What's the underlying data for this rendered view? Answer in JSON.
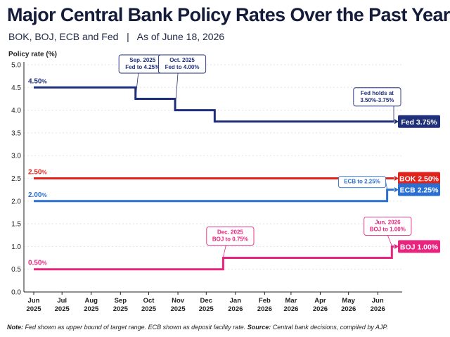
{
  "chart_data": {
    "type": "line",
    "step": true,
    "title": "Major Central Bank Policy Rates Over the Past Year",
    "subtitle": "BOK, BOJ, ECB and Fed",
    "as_of": "As of June 18, 2026",
    "ylabel": "Policy rate (%)",
    "xlabel": "",
    "ylim": [
      0,
      5
    ],
    "yticks": [
      "0.0",
      "0.5",
      "1.0",
      "1.5",
      "2.0",
      "2.5",
      "3.0",
      "3.5",
      "4.0",
      "4.5",
      "5.0"
    ],
    "x_range": [
      "2025-06-01",
      "2026-06-18"
    ],
    "xticks": [
      {
        "month": "Jun",
        "year": "2025",
        "date": "2025-06-01"
      },
      {
        "month": "Jul",
        "year": "2025",
        "date": "2025-07-01"
      },
      {
        "month": "Aug",
        "year": "2025",
        "date": "2025-08-01"
      },
      {
        "month": "Sep",
        "year": "2025",
        "date": "2025-09-01"
      },
      {
        "month": "Oct",
        "year": "2025",
        "date": "2025-10-01"
      },
      {
        "month": "Nov",
        "year": "2025",
        "date": "2025-11-01"
      },
      {
        "month": "Dec",
        "year": "2025",
        "date": "2025-12-01"
      },
      {
        "month": "Jan",
        "year": "2026",
        "date": "2026-01-01"
      },
      {
        "month": "Feb",
        "year": "2026",
        "date": "2026-02-01"
      },
      {
        "month": "Mar",
        "year": "2026",
        "date": "2026-03-01"
      },
      {
        "month": "Apr",
        "year": "2026",
        "date": "2026-04-01"
      },
      {
        "month": "May",
        "year": "2026",
        "date": "2026-05-01"
      },
      {
        "month": "Jun",
        "year": "2026",
        "date": "2026-06-01"
      }
    ],
    "grid": true,
    "series": [
      {
        "name": "Fed",
        "color": "#1f2f7a",
        "start_label": "4.50%",
        "end_label": "Fed 3.75%",
        "points": [
          [
            "2025-06-01",
            4.5
          ],
          [
            "2025-09-17",
            4.25
          ],
          [
            "2025-10-29",
            4.0
          ],
          [
            "2025-12-10",
            3.75
          ],
          [
            "2026-06-18",
            3.75
          ]
        ]
      },
      {
        "name": "BOK",
        "color": "#e0231b",
        "start_label": "2.50%",
        "end_label": "BOK 2.50%",
        "points": [
          [
            "2025-06-01",
            2.5
          ],
          [
            "2026-06-18",
            2.5
          ]
        ]
      },
      {
        "name": "ECB",
        "color": "#2a6fd1",
        "start_label": "2.00%",
        "end_label": "ECB 2.25%",
        "points": [
          [
            "2025-06-01",
            2.0
          ],
          [
            "2026-06-11",
            2.25
          ],
          [
            "2026-06-18",
            2.25
          ]
        ]
      },
      {
        "name": "BOJ",
        "color": "#e8247e",
        "start_label": "0.50%",
        "end_label": "BOJ 1.00%",
        "points": [
          [
            "2025-06-01",
            0.5
          ],
          [
            "2025-12-19",
            0.75
          ],
          [
            "2026-06-16",
            1.0
          ],
          [
            "2026-06-18",
            1.0
          ]
        ]
      }
    ],
    "annotations": [
      {
        "lines": [
          "Sep. 2025",
          "Fed to 4.25%"
        ],
        "series": "Fed",
        "target": [
          "2025-09-17",
          4.25
        ]
      },
      {
        "lines": [
          "Oct. 2025",
          "Fed to 4.00%"
        ],
        "series": "Fed",
        "target": [
          "2025-10-29",
          4.0
        ]
      },
      {
        "lines": [
          "Fed holds at",
          "3.50%-3.75%"
        ],
        "series": "Fed",
        "target": [
          "2026-06-18",
          3.75
        ]
      },
      {
        "lines": [
          "ECB to 2.25%"
        ],
        "series": "ECB",
        "target": [
          "2026-06-11",
          2.25
        ]
      },
      {
        "lines": [
          "Dec. 2025",
          "BOJ to 0.75%"
        ],
        "series": "BOJ",
        "target": [
          "2025-12-19",
          0.75
        ]
      },
      {
        "lines": [
          "Jun. 2026",
          "BOJ to 1.00%"
        ],
        "series": "BOJ",
        "target": [
          "2026-06-16",
          1.0
        ]
      }
    ],
    "note": {
      "label": "Note:",
      "text": "Fed shown as upper bound of target range. ECB shown as deposit facility rate.",
      "source_label": "Source:",
      "source_text": "Central bank decisions, compiled by AJP."
    }
  }
}
